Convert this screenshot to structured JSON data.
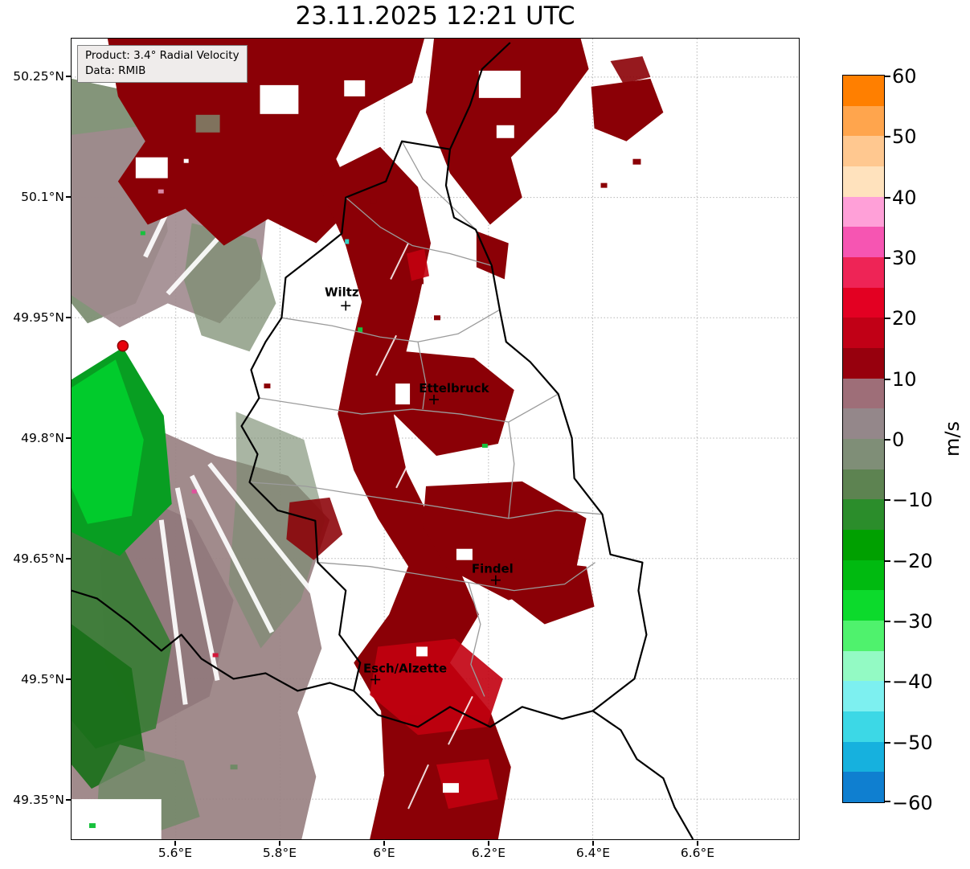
{
  "title": "23.11.2025 12:21 UTC",
  "info_box": {
    "product": "Product: 3.4° Radial Velocity",
    "source": "Data: RMIB"
  },
  "axes": {
    "lat_ticks": [
      {
        "label": "50.25°N"
      },
      {
        "label": "50.1°N"
      },
      {
        "label": "49.95°N"
      },
      {
        "label": "49.8°N"
      },
      {
        "label": "49.65°N"
      },
      {
        "label": "49.5°N"
      },
      {
        "label": "49.35°N"
      }
    ],
    "lon_ticks": [
      {
        "label": "5.6°E"
      },
      {
        "label": "5.8°E"
      },
      {
        "label": "6°E"
      },
      {
        "label": "6.2°E"
      },
      {
        "label": "6.4°E"
      },
      {
        "label": "6.6°E"
      }
    ]
  },
  "colorbar": {
    "unit": "m/s",
    "tick_labels": [
      "60",
      "50",
      "40",
      "30",
      "20",
      "10",
      "0",
      "−10",
      "−20",
      "−30",
      "−40",
      "−50",
      "−60"
    ],
    "segments": [
      "#ff7f00",
      "#ffa54d",
      "#ffc890",
      "#ffe2bd",
      "#ffa0d8",
      "#f655b2",
      "#ee2456",
      "#e30022",
      "#c10016",
      "#97000d",
      "#9e6e78",
      "#94878a",
      "#7f8e77",
      "#5d8351",
      "#2b8d2b",
      "#00a000",
      "#00ba10",
      "#0cda2c",
      "#4ff26d",
      "#93fac4",
      "#7df0f0",
      "#3cd8e6",
      "#16b1de",
      "#0f7fd0"
    ]
  },
  "map": {
    "cities": [
      {
        "name": "Wiltz"
      },
      {
        "name": "Ettelbruck"
      },
      {
        "name": "Findel"
      },
      {
        "name": "Esch/Alzette"
      }
    ],
    "radar_site_color": "#e8000b",
    "palette": {
      "away_dark_red": "#8b0006",
      "away_bright_red": "#c2000f",
      "near_zero_mauve": "#9a8283",
      "near_zero_gray_green": "#7d8f73",
      "toward_green": "#089e22",
      "toward_bright_green": "#00d22e"
    }
  }
}
